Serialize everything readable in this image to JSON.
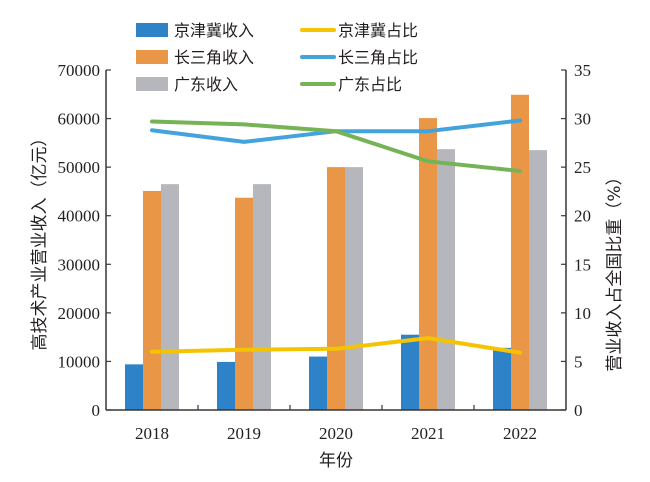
{
  "chart_data": {
    "type": "bar+line",
    "title": "",
    "xlabel": "年份",
    "ylabel_left": "高技术产业营业收入（亿元）",
    "ylabel_right": "营业收入占全国比重（%）",
    "categories": [
      "2018",
      "2019",
      "2020",
      "2021",
      "2022"
    ],
    "y_left": {
      "min": 0,
      "max": 70000,
      "step": 10000,
      "ticks": [
        "0",
        "10000",
        "20000",
        "30000",
        "40000",
        "50000",
        "60000",
        "70000"
      ]
    },
    "y_right": {
      "min": 0,
      "max": 35,
      "step": 5,
      "ticks": [
        "0",
        "5",
        "10",
        "15",
        "20",
        "25",
        "30",
        "35"
      ]
    },
    "grid": false,
    "legend_position": "top",
    "bar_series": [
      {
        "name": "京津冀收入",
        "color": "#2e82c7",
        "values": [
          9400,
          9900,
          11000,
          15500,
          12800
        ]
      },
      {
        "name": "长三角收入",
        "color": "#e99647",
        "values": [
          45100,
          43700,
          50000,
          60100,
          64900
        ]
      },
      {
        "name": "广东收入",
        "color": "#b5b7bd",
        "values": [
          46500,
          46500,
          50000,
          53700,
          53500
        ]
      }
    ],
    "line_series": [
      {
        "name": "京津冀占比",
        "color": "#f5c400",
        "values": [
          6.0,
          6.2,
          6.3,
          7.4,
          5.9
        ]
      },
      {
        "name": "长三角占比",
        "color": "#43a3dc",
        "values": [
          28.8,
          27.6,
          28.7,
          28.7,
          29.8
        ]
      },
      {
        "name": "广东占比",
        "color": "#76b357",
        "values": [
          29.7,
          29.4,
          28.7,
          25.6,
          24.6
        ]
      }
    ]
  }
}
